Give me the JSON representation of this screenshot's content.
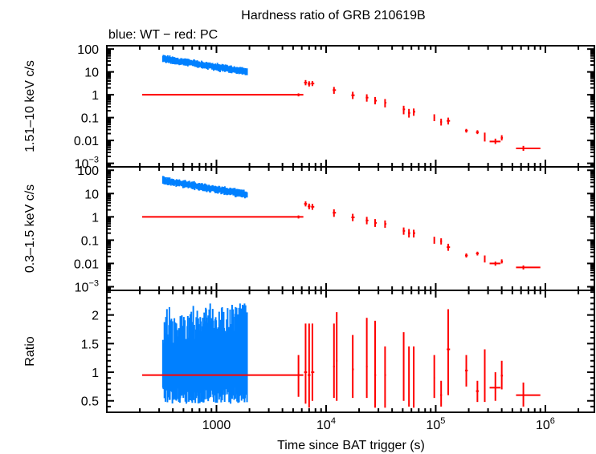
{
  "chart_data": {
    "type": "scatter",
    "title": "Hardness ratio of GRB 210619B",
    "subtitle": "blue: WT − red: PC",
    "xlabel": "Time since BAT trigger (s)",
    "xscale": "log",
    "xlim": [
      100,
      2800000
    ],
    "xticks": [
      {
        "value": 1000,
        "label": "1000"
      },
      {
        "value": 10000,
        "label": "10",
        "exp": "4"
      },
      {
        "value": 100000,
        "label": "10",
        "exp": "5"
      },
      {
        "value": 1000000,
        "label": "10",
        "exp": "6"
      }
    ],
    "colors": {
      "WT": "#0080ff",
      "PC": "#ff0000",
      "axis": "#000000"
    },
    "panels": [
      {
        "id": "hard",
        "ylabel": "1.51–10 keV c/s",
        "yscale": "log",
        "ylim": [
          0.0007,
          140
        ],
        "yticks": [
          {
            "value": 100,
            "label": "100"
          },
          {
            "value": 10,
            "label": "10"
          },
          {
            "value": 1,
            "label": "1"
          },
          {
            "value": 0.1,
            "label": "0.1"
          },
          {
            "value": 0.01,
            "label": "0.01"
          },
          {
            "value": 0.001,
            "label": "10",
            "exp": "−3"
          }
        ],
        "series": [
          {
            "name": "WT",
            "kind": "band",
            "t_start": 325,
            "t_end": 1900,
            "y_start": 38,
            "y_end": 10,
            "scatter_dex": 0.12
          },
          {
            "name": "PC",
            "kind": "points",
            "points": [
              {
                "t": 5600,
                "t_lo": 210,
                "t_hi": 6200,
                "y": 1.0,
                "y_lo": 0.85,
                "y_hi": 1.15
              },
              {
                "t": 6500,
                "t_lo": 6300,
                "t_hi": 6700,
                "y": 3.4,
                "y_lo": 2.6,
                "y_hi": 4.4
              },
              {
                "t": 7000,
                "t_lo": 6800,
                "t_hi": 7200,
                "y": 3.0,
                "y_lo": 2.3,
                "y_hi": 3.9
              },
              {
                "t": 7500,
                "t_lo": 7300,
                "t_hi": 7800,
                "y": 3.1,
                "y_lo": 2.4,
                "y_hi": 4.0
              },
              {
                "t": 11800,
                "t_lo": 11500,
                "t_hi": 12300,
                "y": 1.6,
                "y_lo": 1.1,
                "y_hi": 2.2
              },
              {
                "t": 17500,
                "t_lo": 17000,
                "t_hi": 18200,
                "y": 0.95,
                "y_lo": 0.65,
                "y_hi": 1.35
              },
              {
                "t": 23500,
                "t_lo": 23000,
                "t_hi": 24300,
                "y": 0.75,
                "y_lo": 0.5,
                "y_hi": 1.05
              },
              {
                "t": 28000,
                "t_lo": 27500,
                "t_hi": 29000,
                "y": 0.55,
                "y_lo": 0.38,
                "y_hi": 0.8
              },
              {
                "t": 34500,
                "t_lo": 34000,
                "t_hi": 35500,
                "y": 0.45,
                "y_lo": 0.28,
                "y_hi": 0.65
              },
              {
                "t": 51000,
                "t_lo": 50000,
                "t_hi": 52500,
                "y": 0.23,
                "y_lo": 0.14,
                "y_hi": 0.33
              },
              {
                "t": 57000,
                "t_lo": 56000,
                "t_hi": 58500,
                "y": 0.16,
                "y_lo": 0.1,
                "y_hi": 0.24
              },
              {
                "t": 63000,
                "t_lo": 62000,
                "t_hi": 65000,
                "y": 0.18,
                "y_lo": 0.12,
                "y_hi": 0.25
              },
              {
                "t": 97000,
                "t_lo": 96000,
                "t_hi": 98500,
                "y": 0.1,
                "y_lo": 0.07,
                "y_hi": 0.14
              },
              {
                "t": 112000,
                "t_lo": 110000,
                "t_hi": 114000,
                "y": 0.065,
                "y_lo": 0.045,
                "y_hi": 0.09
              },
              {
                "t": 130000,
                "t_lo": 126000,
                "t_hi": 135000,
                "y": 0.072,
                "y_lo": 0.05,
                "y_hi": 0.1
              },
              {
                "t": 190000,
                "t_lo": 185000,
                "t_hi": 196000,
                "y": 0.027,
                "y_lo": 0.022,
                "y_hi": 0.032
              },
              {
                "t": 240000,
                "t_lo": 233000,
                "t_hi": 247000,
                "y": 0.023,
                "y_lo": 0.019,
                "y_hi": 0.028
              },
              {
                "t": 280000,
                "t_lo": 276000,
                "t_hi": 284000,
                "y": 0.014,
                "y_lo": 0.009,
                "y_hi": 0.022
              },
              {
                "t": 350000,
                "t_lo": 310000,
                "t_hi": 390000,
                "y": 0.009,
                "y_lo": 0.007,
                "y_hi": 0.012
              },
              {
                "t": 400000,
                "t_lo": 392000,
                "t_hi": 410000,
                "y": 0.013,
                "y_lo": 0.01,
                "y_hi": 0.017
              },
              {
                "t": 630000,
                "t_lo": 540000,
                "t_hi": 900000,
                "y": 0.0045,
                "y_lo": 0.0035,
                "y_hi": 0.0058
              }
            ]
          }
        ]
      },
      {
        "id": "soft",
        "ylabel": "0.3–1.5 keV c/s",
        "yscale": "log",
        "ylim": [
          0.0007,
          140
        ],
        "yticks": [
          {
            "value": 100,
            "label": "100"
          },
          {
            "value": 10,
            "label": "10"
          },
          {
            "value": 1,
            "label": "1"
          },
          {
            "value": 0.1,
            "label": "0.1"
          },
          {
            "value": 0.01,
            "label": "0.01"
          },
          {
            "value": 0.001,
            "label": "10",
            "exp": "−3"
          }
        ],
        "series": [
          {
            "name": "WT",
            "kind": "band",
            "t_start": 325,
            "t_end": 1900,
            "y_start": 37,
            "y_end": 9,
            "scatter_dex": 0.12
          },
          {
            "name": "PC",
            "kind": "points",
            "points": [
              {
                "t": 5600,
                "t_lo": 210,
                "t_hi": 6200,
                "y": 1.0,
                "y_lo": 0.85,
                "y_hi": 1.15
              },
              {
                "t": 6500,
                "t_lo": 6300,
                "t_hi": 6700,
                "y": 3.6,
                "y_lo": 2.8,
                "y_hi": 4.6
              },
              {
                "t": 7000,
                "t_lo": 6800,
                "t_hi": 7200,
                "y": 2.8,
                "y_lo": 2.1,
                "y_hi": 3.7
              },
              {
                "t": 7500,
                "t_lo": 7300,
                "t_hi": 7800,
                "y": 2.7,
                "y_lo": 2.0,
                "y_hi": 3.6
              },
              {
                "t": 11800,
                "t_lo": 11500,
                "t_hi": 12300,
                "y": 1.5,
                "y_lo": 1.0,
                "y_hi": 2.1
              },
              {
                "t": 17500,
                "t_lo": 17000,
                "t_hi": 18200,
                "y": 0.95,
                "y_lo": 0.65,
                "y_hi": 1.35
              },
              {
                "t": 23500,
                "t_lo": 23000,
                "t_hi": 24300,
                "y": 0.7,
                "y_lo": 0.48,
                "y_hi": 1.0
              },
              {
                "t": 28000,
                "t_lo": 27500,
                "t_hi": 29000,
                "y": 0.55,
                "y_lo": 0.37,
                "y_hi": 0.8
              },
              {
                "t": 34500,
                "t_lo": 34000,
                "t_hi": 35500,
                "y": 0.5,
                "y_lo": 0.34,
                "y_hi": 0.7
              },
              {
                "t": 51000,
                "t_lo": 50000,
                "t_hi": 52500,
                "y": 0.25,
                "y_lo": 0.17,
                "y_hi": 0.35
              },
              {
                "t": 57000,
                "t_lo": 56000,
                "t_hi": 58500,
                "y": 0.2,
                "y_lo": 0.13,
                "y_hi": 0.3
              },
              {
                "t": 63000,
                "t_lo": 62000,
                "t_hi": 65000,
                "y": 0.2,
                "y_lo": 0.13,
                "y_hi": 0.28
              },
              {
                "t": 97000,
                "t_lo": 96000,
                "t_hi": 98500,
                "y": 0.1,
                "y_lo": 0.07,
                "y_hi": 0.14
              },
              {
                "t": 112000,
                "t_lo": 110000,
                "t_hi": 114000,
                "y": 0.09,
                "y_lo": 0.065,
                "y_hi": 0.12
              },
              {
                "t": 130000,
                "t_lo": 126000,
                "t_hi": 135000,
                "y": 0.05,
                "y_lo": 0.035,
                "y_hi": 0.07
              },
              {
                "t": 190000,
                "t_lo": 185000,
                "t_hi": 196000,
                "y": 0.022,
                "y_lo": 0.018,
                "y_hi": 0.027
              },
              {
                "t": 240000,
                "t_lo": 233000,
                "t_hi": 247000,
                "y": 0.027,
                "y_lo": 0.022,
                "y_hi": 0.032
              },
              {
                "t": 280000,
                "t_lo": 276000,
                "t_hi": 284000,
                "y": 0.016,
                "y_lo": 0.011,
                "y_hi": 0.022
              },
              {
                "t": 350000,
                "t_lo": 310000,
                "t_hi": 390000,
                "y": 0.01,
                "y_lo": 0.008,
                "y_hi": 0.012
              },
              {
                "t": 400000,
                "t_lo": 392000,
                "t_hi": 410000,
                "y": 0.012,
                "y_lo": 0.01,
                "y_hi": 0.015
              },
              {
                "t": 630000,
                "t_lo": 540000,
                "t_hi": 900000,
                "y": 0.0068,
                "y_lo": 0.0055,
                "y_hi": 0.0082
              }
            ]
          }
        ]
      },
      {
        "id": "ratio",
        "ylabel": "Ratio",
        "yscale": "linear",
        "ylim": [
          0.3,
          2.43
        ],
        "yticks": [
          {
            "value": 2,
            "label": "2"
          },
          {
            "value": 1.5,
            "label": "1.5"
          },
          {
            "value": 1,
            "label": "1"
          },
          {
            "value": 0.5,
            "label": "0.5"
          }
        ],
        "series": [
          {
            "name": "WT",
            "kind": "noise",
            "t_start": 325,
            "t_end": 1900,
            "y_center": 1.0,
            "y_lo_min": 0.45,
            "y_hi_max": 2.2
          },
          {
            "name": "PC",
            "kind": "points",
            "points": [
              {
                "t": 5600,
                "t_lo": 210,
                "t_hi": 6200,
                "y": 0.95,
                "y_lo": 0.57,
                "y_hi": 1.3
              },
              {
                "t": 6500,
                "t_lo": 6300,
                "t_hi": 6700,
                "y": 1.0,
                "y_lo": 0.45,
                "y_hi": 1.85
              },
              {
                "t": 7000,
                "t_lo": 6800,
                "t_hi": 7200,
                "y": 0.95,
                "y_lo": 0.38,
                "y_hi": 1.85
              },
              {
                "t": 7500,
                "t_lo": 7300,
                "t_hi": 7800,
                "y": 1.0,
                "y_lo": 0.5,
                "y_hi": 1.85
              },
              {
                "t": 11800,
                "t_lo": 11600,
                "t_hi": 12000,
                "y": 1.1,
                "y_lo": 0.55,
                "y_hi": 1.85
              },
              {
                "t": 12500,
                "t_lo": 12300,
                "t_hi": 12700,
                "y": 1.2,
                "y_lo": 0.5,
                "y_hi": 2.05
              },
              {
                "t": 17500,
                "t_lo": 17200,
                "t_hi": 17900,
                "y": 1.05,
                "y_lo": 0.55,
                "y_hi": 1.65
              },
              {
                "t": 23500,
                "t_lo": 23200,
                "t_hi": 23900,
                "y": 1.1,
                "y_lo": 0.55,
                "y_hi": 1.95
              },
              {
                "t": 28000,
                "t_lo": 27500,
                "t_hi": 28600,
                "y": 0.95,
                "y_lo": 0.38,
                "y_hi": 1.9
              },
              {
                "t": 34500,
                "t_lo": 34000,
                "t_hi": 35200,
                "y": 0.95,
                "y_lo": 0.38,
                "y_hi": 1.45
              },
              {
                "t": 51000,
                "t_lo": 50500,
                "t_hi": 51700,
                "y": 1.0,
                "y_lo": 0.5,
                "y_hi": 1.7
              },
              {
                "t": 57000,
                "t_lo": 56500,
                "t_hi": 57800,
                "y": 0.95,
                "y_lo": 0.4,
                "y_hi": 1.45
              },
              {
                "t": 63000,
                "t_lo": 62000,
                "t_hi": 64000,
                "y": 0.9,
                "y_lo": 0.38,
                "y_hi": 1.45
              },
              {
                "t": 97000,
                "t_lo": 96000,
                "t_hi": 98500,
                "y": 0.9,
                "y_lo": 0.55,
                "y_hi": 1.3
              },
              {
                "t": 112000,
                "t_lo": 110000,
                "t_hi": 114000,
                "y": 0.6,
                "y_lo": 0.4,
                "y_hi": 0.85
              },
              {
                "t": 130000,
                "t_lo": 126000,
                "t_hi": 135000,
                "y": 1.4,
                "y_lo": 0.6,
                "y_hi": 2.1
              },
              {
                "t": 190000,
                "t_lo": 185000,
                "t_hi": 196000,
                "y": 1.03,
                "y_lo": 0.75,
                "y_hi": 1.3
              },
              {
                "t": 240000,
                "t_lo": 233000,
                "t_hi": 247000,
                "y": 0.67,
                "y_lo": 0.48,
                "y_hi": 0.85
              },
              {
                "t": 280000,
                "t_lo": 276000,
                "t_hi": 284000,
                "y": 0.68,
                "y_lo": 0.48,
                "y_hi": 1.4
              },
              {
                "t": 350000,
                "t_lo": 310000,
                "t_hi": 390000,
                "y": 0.73,
                "y_lo": 0.5,
                "y_hi": 1.0
              },
              {
                "t": 400000,
                "t_lo": 392000,
                "t_hi": 410000,
                "y": 0.94,
                "y_lo": 0.7,
                "y_hi": 1.2
              },
              {
                "t": 630000,
                "t_lo": 540000,
                "t_hi": 900000,
                "y": 0.6,
                "y_lo": 0.4,
                "y_hi": 0.82
              }
            ]
          }
        ]
      }
    ]
  }
}
